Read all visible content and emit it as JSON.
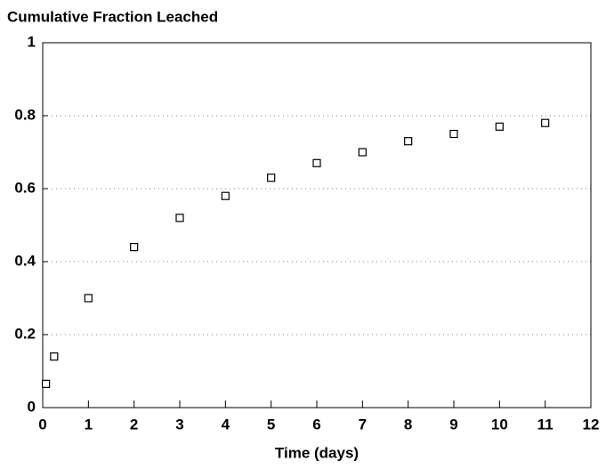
{
  "chart_data": {
    "type": "scatter",
    "y_label": "Cumulative Fraction Leached",
    "x_label": "Time  (days)",
    "series": [
      {
        "name": null,
        "color": "#000000",
        "x": [
          0.07,
          0.25,
          1,
          2,
          3,
          4,
          5,
          6,
          7,
          8,
          9,
          10,
          11
        ],
        "values": [
          0.065,
          0.14,
          0.3,
          0.44,
          0.52,
          0.58,
          0.63,
          0.67,
          0.7,
          0.73,
          0.75,
          0.77,
          0.78
        ]
      }
    ],
    "xlim": [
      0,
      12
    ],
    "xticks": [
      0,
      1,
      2,
      3,
      4,
      5,
      6,
      7,
      8,
      9,
      10,
      11,
      12
    ],
    "ylim": [
      0,
      1
    ],
    "yticks": [
      0,
      0.2,
      0.4,
      0.6,
      0.8,
      1
    ],
    "grid": true
  }
}
